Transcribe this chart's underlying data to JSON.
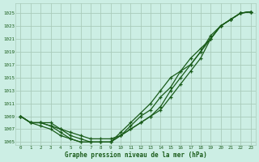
{
  "title": "Graphe pression niveau de la mer (hPa)",
  "background_color": "#cceee4",
  "grid_color": "#aaccbb",
  "line_color": "#1a5c1a",
  "xlim": [
    -0.5,
    23.5
  ],
  "ylim": [
    1004.5,
    1026.5
  ],
  "yticks": [
    1005,
    1007,
    1009,
    1011,
    1013,
    1015,
    1017,
    1019,
    1021,
    1023,
    1025
  ],
  "xticks": [
    0,
    1,
    2,
    3,
    4,
    5,
    6,
    7,
    8,
    9,
    10,
    11,
    12,
    13,
    14,
    15,
    16,
    17,
    18,
    19,
    20,
    21,
    22,
    23
  ],
  "series": [
    [
      1009,
      1008,
      1008,
      1008,
      1007,
      1006.5,
      1006,
      1005.5,
      1005.5,
      1005.5,
      1006,
      1007,
      1008,
      1009,
      1010,
      1012,
      1014,
      1016,
      1018,
      1021,
      1023,
      1024,
      1025,
      1025.2
    ],
    [
      1009,
      1008,
      1008,
      1007.5,
      1007,
      1006,
      1005.5,
      1005,
      1005,
      1005,
      1006,
      1007,
      1008,
      1009,
      1010.5,
      1013,
      1015,
      1017,
      1019,
      1021,
      1023,
      1024,
      1025,
      1025.2
    ],
    [
      1009,
      1008,
      1008,
      1007.5,
      1006.5,
      1005.5,
      1005,
      1005,
      1005,
      1005,
      1006,
      1007.5,
      1009,
      1010,
      1012,
      1013.5,
      1016,
      1018,
      1019.5,
      1021,
      1023,
      1024,
      1025,
      1025.2
    ],
    [
      1009,
      1008,
      1007.5,
      1007,
      1006,
      1005.5,
      1005,
      1005,
      1005,
      1005,
      1006.5,
      1008,
      1009.5,
      1011,
      1013,
      1015,
      1016,
      1017,
      1019,
      1021.5,
      1023,
      1024,
      1025,
      1025.2
    ]
  ]
}
